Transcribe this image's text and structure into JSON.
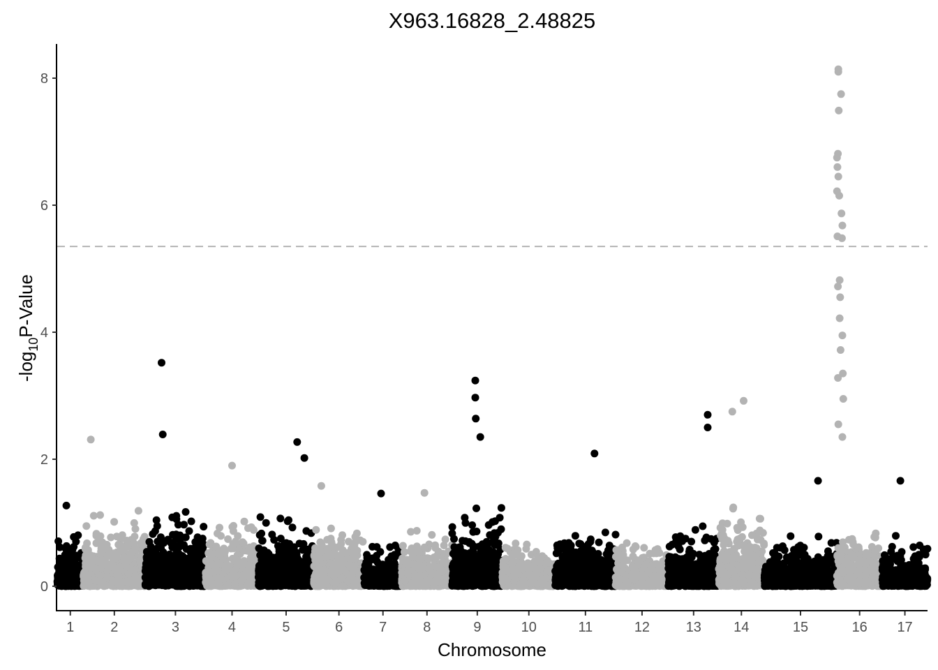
{
  "chart_data": {
    "type": "scatter",
    "title": "X963.16828_2.48825",
    "xlabel": "Chromosome",
    "ylabel_prefix": "-log",
    "ylabel_subscript": "10",
    "ylabel_suffix": "P-Value",
    "ylim": [
      -0.35,
      8.55
    ],
    "y_ticks": [
      0,
      2,
      4,
      6,
      8
    ],
    "threshold": 5.35,
    "colors": {
      "odd": "#000000",
      "even": "#b3b3b3",
      "threshold": "#b3b3b3"
    },
    "chromosomes": [
      {
        "label": "1",
        "start": 0,
        "end": 0.52
      },
      {
        "label": "2",
        "start": 0.52,
        "end": 1.75
      },
      {
        "label": "3",
        "start": 1.75,
        "end": 2.95
      },
      {
        "label": "4",
        "start": 2.95,
        "end": 4.0
      },
      {
        "label": "5",
        "start": 4.0,
        "end": 5.1
      },
      {
        "label": "6",
        "start": 5.1,
        "end": 6.1
      },
      {
        "label": "7",
        "start": 6.1,
        "end": 6.85
      },
      {
        "label": "8",
        "start": 6.85,
        "end": 7.85
      },
      {
        "label": "9",
        "start": 7.85,
        "end": 8.85
      },
      {
        "label": "10",
        "start": 8.85,
        "end": 9.9
      },
      {
        "label": "11",
        "start": 9.9,
        "end": 11.1
      },
      {
        "label": "12",
        "start": 11.1,
        "end": 12.15
      },
      {
        "label": "13",
        "start": 12.15,
        "end": 13.15
      },
      {
        "label": "14",
        "start": 13.15,
        "end": 14.05
      },
      {
        "label": "15",
        "start": 14.05,
        "end": 15.5
      },
      {
        "label": "16",
        "start": 15.5,
        "end": 16.4
      },
      {
        "label": "17",
        "start": 16.4,
        "end": 17.3
      }
    ],
    "notable_points": [
      {
        "chr": "1",
        "pos": 0.35,
        "value": 1.27
      },
      {
        "chr": "2",
        "pos": 0.12,
        "value": 2.31
      },
      {
        "chr": "3",
        "pos": 0.27,
        "value": 3.52
      },
      {
        "chr": "3",
        "pos": 0.29,
        "value": 2.39
      },
      {
        "chr": "4",
        "pos": 0.5,
        "value": 1.9
      },
      {
        "chr": "5",
        "pos": 0.7,
        "value": 2.27
      },
      {
        "chr": "5",
        "pos": 0.83,
        "value": 2.02
      },
      {
        "chr": "6",
        "pos": 0.15,
        "value": 1.58
      },
      {
        "chr": "7",
        "pos": 0.45,
        "value": 1.46
      },
      {
        "chr": "8",
        "pos": 0.45,
        "value": 1.47
      },
      {
        "chr": "9",
        "pos": 0.46,
        "value": 3.24
      },
      {
        "chr": "9",
        "pos": 0.46,
        "value": 2.97
      },
      {
        "chr": "9",
        "pos": 0.47,
        "value": 2.64
      },
      {
        "chr": "9",
        "pos": 0.56,
        "value": 2.35
      },
      {
        "chr": "11",
        "pos": 0.65,
        "value": 2.09
      },
      {
        "chr": "13",
        "pos": 0.78,
        "value": 2.7
      },
      {
        "chr": "13",
        "pos": 0.78,
        "value": 2.5
      },
      {
        "chr": "14",
        "pos": 0.3,
        "value": 2.75
      },
      {
        "chr": "14",
        "pos": 0.55,
        "value": 2.92
      },
      {
        "chr": "15",
        "pos": 0.74,
        "value": 1.66
      },
      {
        "chr": "16",
        "pos": 0.03,
        "value": 8.14
      },
      {
        "chr": "16",
        "pos": 0.03,
        "value": 8.1
      },
      {
        "chr": "16",
        "pos": 0.09,
        "value": 7.75
      },
      {
        "chr": "16",
        "pos": 0.04,
        "value": 7.49
      },
      {
        "chr": "16",
        "pos": 0.02,
        "value": 6.81
      },
      {
        "chr": "16",
        "pos": 0.0,
        "value": 6.75
      },
      {
        "chr": "16",
        "pos": 0.01,
        "value": 6.6
      },
      {
        "chr": "16",
        "pos": 0.03,
        "value": 6.45
      },
      {
        "chr": "16",
        "pos": 0.0,
        "value": 6.22
      },
      {
        "chr": "16",
        "pos": 0.05,
        "value": 6.15
      },
      {
        "chr": "16",
        "pos": 0.1,
        "value": 5.87
      },
      {
        "chr": "16",
        "pos": 0.12,
        "value": 5.68
      },
      {
        "chr": "16",
        "pos": 0.11,
        "value": 5.48
      },
      {
        "chr": "16",
        "pos": 0.01,
        "value": 5.51
      },
      {
        "chr": "16",
        "pos": 0.06,
        "value": 4.82
      },
      {
        "chr": "16",
        "pos": 0.02,
        "value": 4.72
      },
      {
        "chr": "16",
        "pos": 0.07,
        "value": 4.55
      },
      {
        "chr": "16",
        "pos": 0.06,
        "value": 4.22
      },
      {
        "chr": "16",
        "pos": 0.12,
        "value": 3.95
      },
      {
        "chr": "16",
        "pos": 0.08,
        "value": 3.72
      },
      {
        "chr": "16",
        "pos": 0.13,
        "value": 3.35
      },
      {
        "chr": "16",
        "pos": 0.02,
        "value": 3.28
      },
      {
        "chr": "16",
        "pos": 0.14,
        "value": 2.95
      },
      {
        "chr": "16",
        "pos": 0.03,
        "value": 2.55
      },
      {
        "chr": "16",
        "pos": 0.12,
        "value": 2.35
      },
      {
        "chr": "17",
        "pos": 0.4,
        "value": 1.66
      }
    ]
  }
}
